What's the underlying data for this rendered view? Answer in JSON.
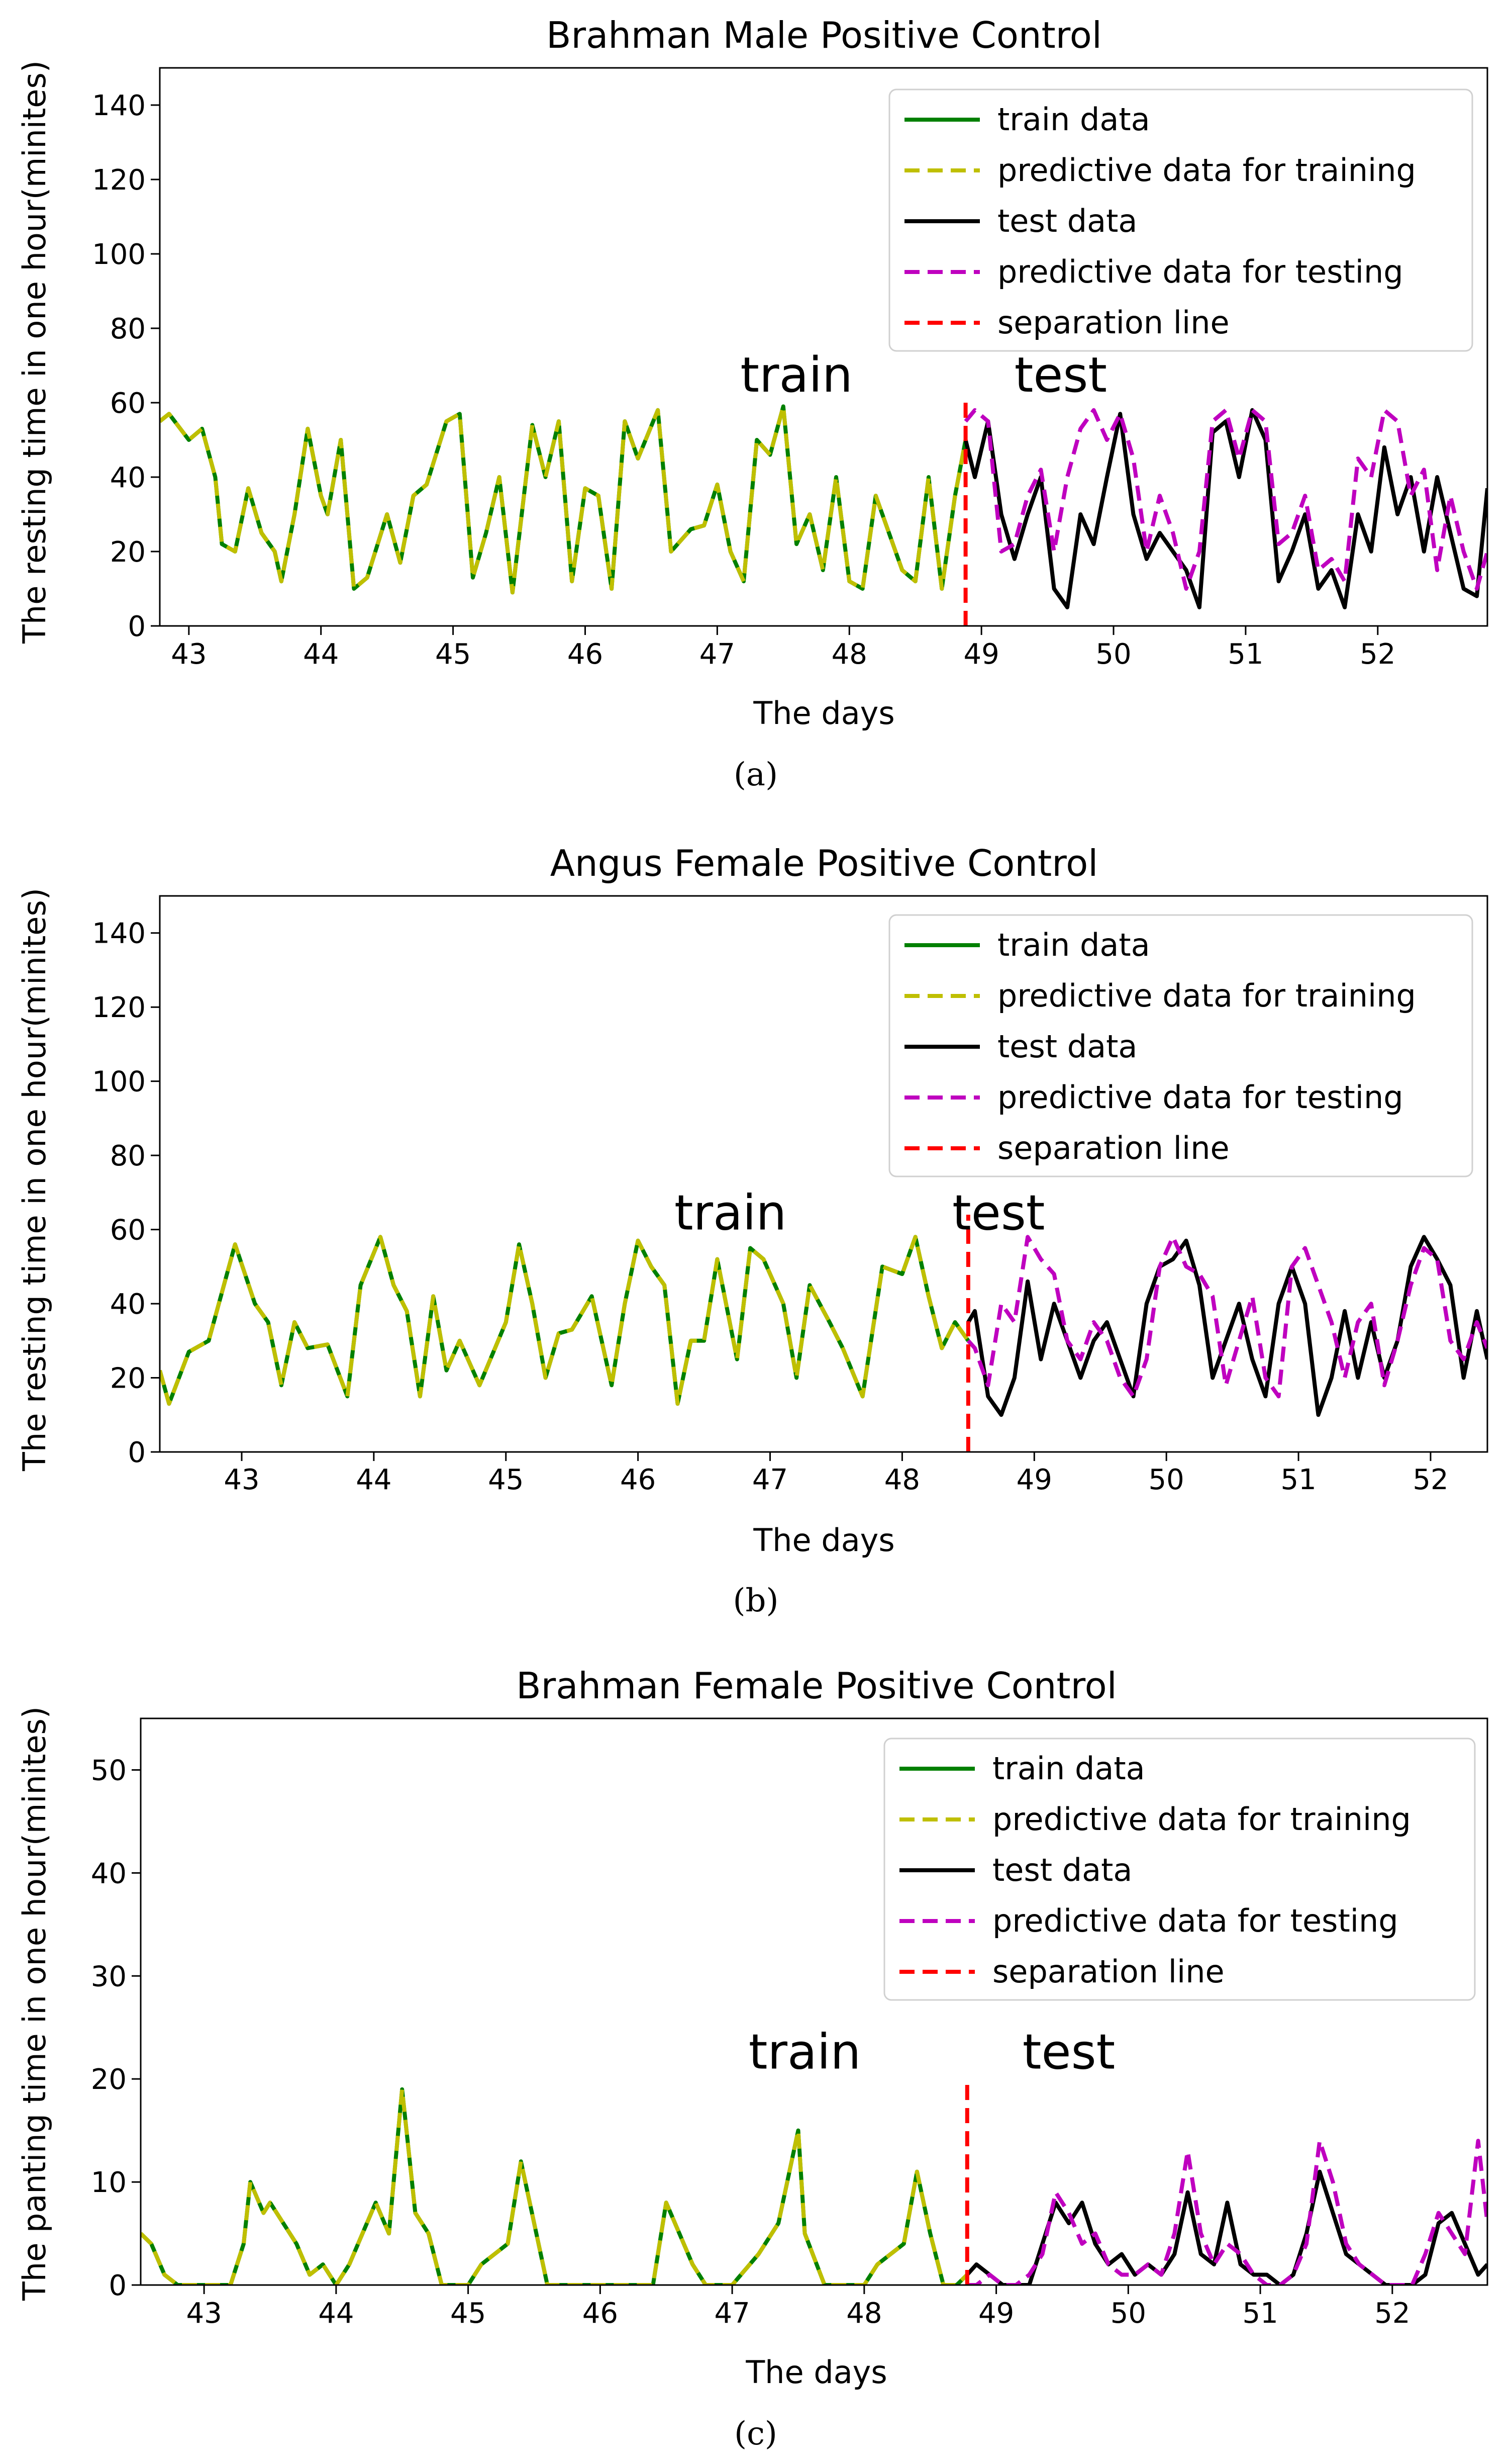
{
  "colors": {
    "train": "#008000",
    "pred_train": "#bfbf00",
    "test": "#000000",
    "pred_test": "#bf00bf",
    "separation": "#ff0000"
  },
  "chart_data": [
    {
      "type": "line",
      "caption": "(a)",
      "title": "Brahman Male Positive Control",
      "xlabel": "The days",
      "ylabel": "The resting time in one hour(minites)",
      "xlim": [
        42.78,
        52.83
      ],
      "ylim": [
        0,
        150
      ],
      "xticks": [
        43,
        44,
        45,
        46,
        47,
        48,
        49,
        50,
        51,
        52
      ],
      "yticks": [
        0,
        20,
        40,
        60,
        80,
        100,
        120,
        140
      ],
      "separation_x": 48.88,
      "separation_ymax": 60,
      "annotations": [
        {
          "text": "train",
          "x": 47.6,
          "y": 63
        },
        {
          "text": "test",
          "x": 49.6,
          "y": 63
        }
      ],
      "legend": {
        "position": "upper right",
        "entries": [
          "train data",
          "predictive data for training",
          "test data",
          "predictive data for testing",
          "separation line"
        ]
      },
      "train_x": [
        42.78,
        42.85,
        43.0,
        43.1,
        43.2,
        43.25,
        43.35,
        43.45,
        43.55,
        43.65,
        43.7,
        43.8,
        43.9,
        44.0,
        44.05,
        44.15,
        44.25,
        44.35,
        44.5,
        44.6,
        44.7,
        44.8,
        44.95,
        45.05,
        45.15,
        45.25,
        45.35,
        45.45,
        45.6,
        45.7,
        45.8,
        45.9,
        46.0,
        46.1,
        46.2,
        46.3,
        46.4,
        46.55,
        46.65,
        46.8,
        46.9,
        47.0,
        47.1,
        47.2,
        47.3,
        47.4,
        47.5,
        47.6,
        47.7,
        47.8,
        47.9,
        48.0,
        48.1,
        48.2,
        48.3,
        48.4,
        48.5,
        48.6,
        48.7,
        48.8,
        48.88
      ],
      "train_y": [
        55,
        57,
        50,
        53,
        40,
        22,
        20,
        37,
        25,
        20,
        12,
        30,
        53,
        35,
        30,
        50,
        10,
        13,
        30,
        17,
        35,
        38,
        55,
        57,
        13,
        25,
        40,
        9,
        54,
        40,
        55,
        12,
        37,
        35,
        10,
        55,
        45,
        58,
        20,
        26,
        27,
        38,
        20,
        12,
        50,
        46,
        59,
        22,
        30,
        15,
        40,
        12,
        10,
        35,
        25,
        15,
        12,
        40,
        10,
        35,
        50
      ],
      "test_x": [
        48.88,
        48.95,
        49.05,
        49.15,
        49.25,
        49.35,
        49.45,
        49.55,
        49.65,
        49.75,
        49.85,
        49.95,
        50.05,
        50.15,
        50.25,
        50.35,
        50.45,
        50.55,
        50.65,
        50.75,
        50.85,
        50.95,
        51.05,
        51.15,
        51.25,
        51.35,
        51.45,
        51.55,
        51.65,
        51.75,
        51.85,
        51.95,
        52.05,
        52.15,
        52.25,
        52.35,
        52.45,
        52.55,
        52.65,
        52.75,
        52.83
      ],
      "test_y": [
        50,
        40,
        55,
        30,
        18,
        30,
        40,
        10,
        5,
        30,
        22,
        40,
        57,
        30,
        18,
        25,
        20,
        15,
        5,
        52,
        55,
        40,
        58,
        50,
        12,
        20,
        30,
        10,
        15,
        5,
        30,
        20,
        48,
        30,
        40,
        20,
        40,
        25,
        10,
        8,
        37
      ],
      "pred_test_x": [
        48.88,
        48.95,
        49.05,
        49.15,
        49.25,
        49.35,
        49.45,
        49.55,
        49.65,
        49.75,
        49.85,
        49.95,
        50.05,
        50.15,
        50.25,
        50.35,
        50.45,
        50.55,
        50.65,
        50.75,
        50.85,
        50.95,
        51.05,
        51.15,
        51.25,
        51.35,
        51.45,
        51.55,
        51.65,
        51.75,
        51.85,
        51.95,
        52.05,
        52.15,
        52.25,
        52.35,
        52.45,
        52.55,
        52.65,
        52.75,
        52.83
      ],
      "pred_test_y": [
        55,
        58,
        55,
        20,
        22,
        35,
        42,
        20,
        40,
        53,
        58,
        50,
        57,
        45,
        20,
        35,
        25,
        10,
        20,
        55,
        58,
        45,
        58,
        55,
        22,
        25,
        35,
        15,
        18,
        12,
        45,
        40,
        58,
        55,
        35,
        42,
        15,
        35,
        20,
        10,
        20
      ]
    },
    {
      "type": "line",
      "caption": "(b)",
      "title": "Angus Female Positive Control",
      "xlabel": "The days",
      "ylabel": "The resting time in one hour(minites)",
      "xlim": [
        42.38,
        52.43
      ],
      "ylim": [
        0,
        150
      ],
      "xticks": [
        43,
        44,
        45,
        46,
        47,
        48,
        49,
        50,
        51,
        52
      ],
      "yticks": [
        0,
        20,
        40,
        60,
        80,
        100,
        120,
        140
      ],
      "separation_x": 48.5,
      "separation_ymax": 64,
      "annotations": [
        {
          "text": "train",
          "x": 46.7,
          "y": 60
        },
        {
          "text": "test",
          "x": 48.73,
          "y": 60
        }
      ],
      "legend": {
        "position": "upper right",
        "entries": [
          "train data",
          "predictive data for training",
          "test data",
          "predictive data for testing",
          "separation line"
        ]
      },
      "train_x": [
        42.38,
        42.45,
        42.6,
        42.75,
        42.95,
        43.1,
        43.2,
        43.3,
        43.4,
        43.5,
        43.65,
        43.8,
        43.9,
        44.05,
        44.15,
        44.25,
        44.35,
        44.45,
        44.55,
        44.65,
        44.8,
        45.0,
        45.1,
        45.2,
        45.3,
        45.4,
        45.5,
        45.65,
        45.8,
        45.9,
        46.0,
        46.1,
        46.2,
        46.3,
        46.4,
        46.5,
        46.6,
        46.75,
        46.85,
        46.95,
        47.1,
        47.2,
        47.3,
        47.45,
        47.55,
        47.7,
        47.85,
        48.0,
        48.1,
        48.2,
        48.3,
        48.4,
        48.5
      ],
      "train_y": [
        22,
        13,
        27,
        30,
        56,
        40,
        35,
        18,
        35,
        28,
        29,
        15,
        45,
        58,
        45,
        38,
        15,
        42,
        22,
        30,
        18,
        35,
        56,
        40,
        20,
        32,
        33,
        42,
        18,
        40,
        57,
        50,
        45,
        13,
        30,
        30,
        52,
        25,
        55,
        52,
        40,
        20,
        45,
        35,
        28,
        15,
        50,
        48,
        58,
        42,
        28,
        35,
        30
      ],
      "test_x": [
        48.5,
        48.55,
        48.65,
        48.75,
        48.85,
        48.95,
        49.05,
        49.15,
        49.25,
        49.35,
        49.45,
        49.55,
        49.65,
        49.75,
        49.85,
        49.95,
        50.05,
        50.15,
        50.25,
        50.35,
        50.45,
        50.55,
        50.65,
        50.75,
        50.85,
        50.95,
        51.05,
        51.15,
        51.25,
        51.35,
        51.45,
        51.55,
        51.65,
        51.75,
        51.85,
        51.95,
        52.05,
        52.15,
        52.25,
        52.35,
        52.43
      ],
      "test_y": [
        35,
        38,
        15,
        10,
        20,
        46,
        25,
        40,
        30,
        20,
        30,
        35,
        25,
        15,
        40,
        50,
        52,
        57,
        45,
        20,
        30,
        40,
        25,
        15,
        40,
        50,
        40,
        10,
        20,
        38,
        20,
        35,
        20,
        30,
        50,
        58,
        52,
        45,
        20,
        38,
        25
      ],
      "pred_test_x": [
        48.5,
        48.55,
        48.65,
        48.75,
        48.85,
        48.95,
        49.05,
        49.15,
        49.25,
        49.35,
        49.45,
        49.55,
        49.65,
        49.75,
        49.85,
        49.95,
        50.05,
        50.15,
        50.25,
        50.35,
        50.45,
        50.55,
        50.65,
        50.75,
        50.85,
        50.95,
        51.05,
        51.15,
        51.25,
        51.35,
        51.45,
        51.55,
        51.65,
        51.75,
        51.85,
        51.95,
        52.05,
        52.15,
        52.25,
        52.35,
        52.43
      ],
      "pred_test_y": [
        30,
        28,
        18,
        40,
        35,
        58,
        52,
        48,
        30,
        25,
        35,
        30,
        20,
        15,
        25,
        50,
        58,
        50,
        48,
        42,
        18,
        30,
        42,
        20,
        15,
        50,
        55,
        45,
        35,
        20,
        35,
        40,
        18,
        30,
        45,
        55,
        52,
        30,
        25,
        35,
        28
      ]
    },
    {
      "type": "line",
      "caption": "(c)",
      "title": "Brahman Female Positive Control",
      "xlabel": "The days",
      "ylabel": "The panting time in one hour(minites)",
      "xlim": [
        42.52,
        52.72
      ],
      "ylim": [
        0,
        55
      ],
      "xticks": [
        43,
        44,
        45,
        46,
        47,
        48,
        49,
        50,
        51,
        52
      ],
      "yticks": [
        0,
        10,
        20,
        30,
        40,
        50
      ],
      "separation_x": 48.78,
      "separation_ymax": 20,
      "annotations": [
        {
          "text": "train",
          "x": 47.55,
          "y": 21
        },
        {
          "text": "test",
          "x": 49.55,
          "y": 21
        }
      ],
      "legend": {
        "position": "upper right",
        "entries": [
          "train data",
          "predictive data for training",
          "test data",
          "predictive data for testing",
          "separation line"
        ]
      },
      "train_x": [
        42.52,
        42.6,
        42.7,
        42.8,
        43.0,
        43.2,
        43.3,
        43.35,
        43.45,
        43.5,
        43.6,
        43.7,
        43.8,
        43.9,
        44.0,
        44.1,
        44.2,
        44.3,
        44.4,
        44.5,
        44.6,
        44.7,
        44.8,
        44.9,
        45.0,
        45.1,
        45.3,
        45.4,
        45.5,
        45.6,
        45.7,
        45.8,
        46.0,
        46.2,
        46.4,
        46.5,
        46.6,
        46.7,
        46.8,
        47.0,
        47.2,
        47.35,
        47.5,
        47.55,
        47.7,
        47.8,
        47.9,
        48.0,
        48.1,
        48.2,
        48.3,
        48.4,
        48.5,
        48.6,
        48.7,
        48.78
      ],
      "train_y": [
        5,
        4,
        1,
        0,
        0,
        0,
        4,
        10,
        7,
        8,
        6,
        4,
        1,
        2,
        0,
        2,
        5,
        8,
        5,
        19,
        7,
        5,
        0,
        0,
        0,
        2,
        4,
        12,
        6,
        0,
        0,
        0,
        0,
        0,
        0,
        8,
        5,
        2,
        0,
        0,
        3,
        6,
        15,
        5,
        0,
        0,
        0,
        0,
        2,
        3,
        4,
        11,
        5,
        0,
        0,
        1
      ],
      "test_x": [
        48.78,
        48.85,
        48.95,
        49.05,
        49.15,
        49.25,
        49.35,
        49.45,
        49.55,
        49.65,
        49.75,
        49.85,
        49.95,
        50.05,
        50.15,
        50.25,
        50.35,
        50.45,
        50.55,
        50.65,
        50.75,
        50.85,
        50.95,
        51.05,
        51.15,
        51.25,
        51.35,
        51.45,
        51.55,
        51.65,
        51.75,
        51.85,
        51.95,
        52.05,
        52.15,
        52.25,
        52.35,
        52.45,
        52.55,
        52.65,
        52.72
      ],
      "test_y": [
        1,
        2,
        1,
        0,
        0,
        0,
        4,
        8,
        6,
        8,
        4,
        2,
        3,
        1,
        2,
        1,
        3,
        9,
        3,
        2,
        8,
        2,
        1,
        1,
        0,
        1,
        5,
        11,
        7,
        3,
        2,
        1,
        0,
        0,
        0,
        1,
        6,
        7,
        4,
        1,
        2
      ],
      "pred_test_x": [
        48.78,
        48.85,
        48.95,
        49.05,
        49.15,
        49.25,
        49.35,
        49.45,
        49.55,
        49.65,
        49.75,
        49.85,
        49.95,
        50.05,
        50.15,
        50.25,
        50.35,
        50.45,
        50.55,
        50.65,
        50.75,
        50.85,
        50.95,
        51.05,
        51.15,
        51.25,
        51.35,
        51.45,
        51.55,
        51.65,
        51.75,
        51.85,
        51.95,
        52.05,
        52.15,
        52.25,
        52.35,
        52.45,
        52.55,
        52.65,
        52.72
      ],
      "pred_test_y": [
        0,
        0,
        1,
        0,
        0,
        1,
        3,
        9,
        7,
        4,
        5,
        2,
        1,
        1,
        2,
        1,
        5,
        13,
        5,
        2,
        4,
        3,
        1,
        0,
        0,
        1,
        4,
        14,
        10,
        4,
        2,
        1,
        0,
        0,
        0,
        3,
        7,
        5,
        3,
        14,
        6
      ]
    }
  ]
}
